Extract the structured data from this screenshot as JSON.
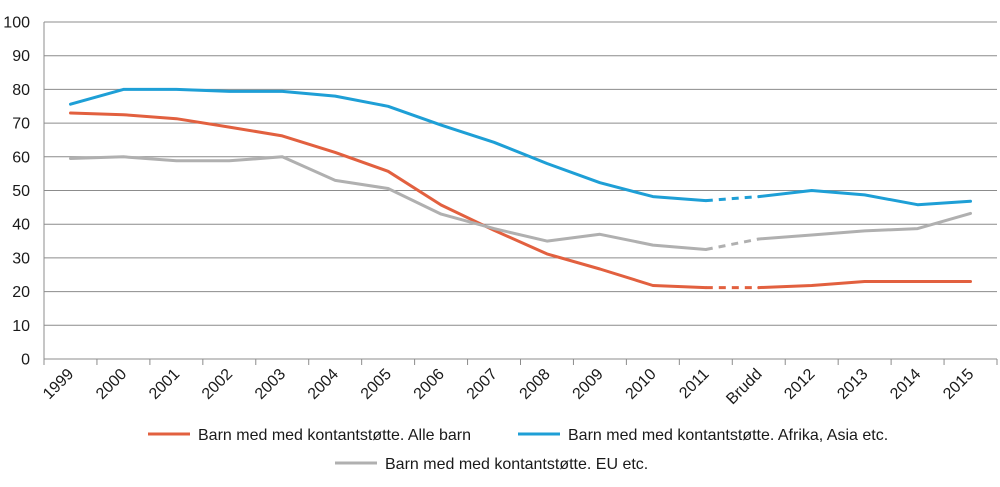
{
  "chart_data": {
    "type": "line",
    "categories": [
      "1999",
      "2000",
      "2001",
      "2002",
      "2003",
      "2004",
      "2005",
      "2006",
      "2007",
      "2008",
      "2009",
      "2010",
      "2011",
      "Brudd",
      "2012",
      "2013",
      "2014",
      "2015"
    ],
    "ylim": [
      0,
      100
    ],
    "yticks": [
      0,
      10,
      20,
      30,
      40,
      50,
      60,
      70,
      80,
      90,
      100
    ],
    "grid": true,
    "legend_position": "bottom",
    "dashed_segment": [
      "2011",
      "Brudd"
    ],
    "series": [
      {
        "name": "Barn med med kontantstøtte. Alle barn",
        "color": "#e2603f",
        "values": [
          73,
          72.5,
          71.3,
          68.8,
          66.2,
          61.3,
          55.7,
          45.7,
          38.2,
          31.2,
          26.7,
          21.8,
          21.2,
          21.2,
          21.8,
          23,
          23,
          23
        ]
      },
      {
        "name": "Barn med med kontantstøtte. Afrika, Asia etc.",
        "color": "#1e9fd6",
        "values": [
          75.6,
          80,
          80,
          79.4,
          79.4,
          78,
          75,
          69.4,
          64.3,
          58,
          52.3,
          48.2,
          47,
          48.2,
          50,
          48.7,
          45.8,
          46.8
        ]
      },
      {
        "name": "Barn med med kontantstøtte. EU etc.",
        "color": "#b0b0b0",
        "values": [
          59.5,
          60,
          58.8,
          58.8,
          60,
          53,
          50.6,
          43,
          38.7,
          35,
          37,
          33.8,
          32.5,
          35.6,
          36.8,
          38,
          38.7,
          43.2
        ]
      }
    ]
  }
}
